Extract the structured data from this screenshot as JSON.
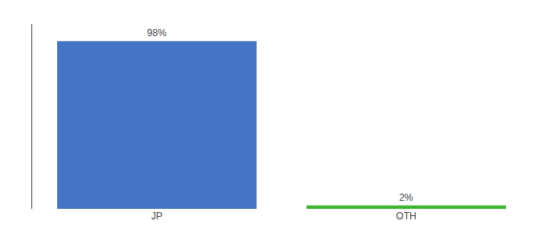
{
  "chart_data": {
    "type": "bar",
    "categories": [
      "JP",
      "OTH"
    ],
    "values": [
      98,
      2
    ],
    "value_labels": [
      "98%",
      "2%"
    ],
    "data_labels": true,
    "colors": [
      "#4472c4",
      "#3cb52e"
    ],
    "ylim": [
      0,
      108
    ],
    "grid": false,
    "tick_labels": "x"
  }
}
